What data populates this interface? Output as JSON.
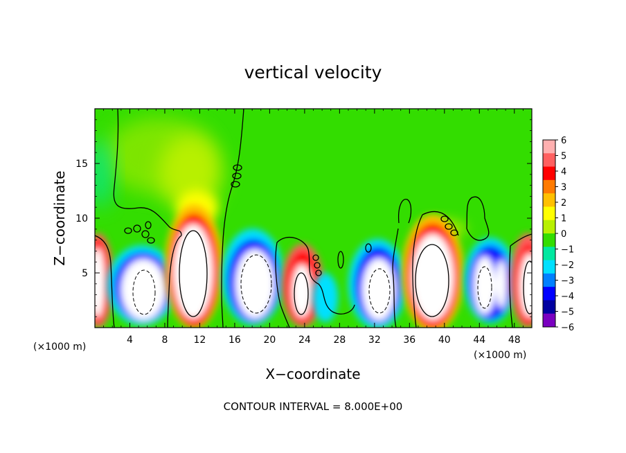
{
  "chart_data": {
    "type": "heatmap",
    "title": "vertical velocity",
    "xlabel": "X−coordinate",
    "ylabel": "Z−coordinate",
    "x_unit": "(×1000 m)",
    "y_unit": "(×1000 m)",
    "xlim": [
      0,
      50
    ],
    "ylim": [
      0,
      20
    ],
    "xticks": [
      4,
      8,
      12,
      16,
      20,
      24,
      28,
      32,
      36,
      40,
      44,
      48
    ],
    "xtick_labels": [
      "4",
      "8",
      "12",
      "16",
      "20",
      "24",
      "28",
      "32",
      "36",
      "40",
      "44",
      "48"
    ],
    "yticks": [
      5,
      10,
      15
    ],
    "ytick_labels": [
      "5",
      "10",
      "15"
    ],
    "footnote": "CONTOUR INTERVAL = 8.000E+00",
    "colorbar": {
      "ticks": [
        6,
        5,
        4,
        3,
        2,
        1,
        0,
        -1,
        -2,
        -3,
        -4,
        -5,
        -6
      ],
      "tick_labels": [
        "6",
        "5",
        "4",
        "3",
        "2",
        "1",
        "0",
        "−1",
        "−2",
        "−3",
        "−4",
        "−5",
        "−6"
      ],
      "colors": [
        "#ffb0b0",
        "#ff6060",
        "#ff0000",
        "#ff7a00",
        "#ffc000",
        "#ffff00",
        "#b8f000",
        "#33dd00",
        "#00e8a0",
        "#00e0ff",
        "#0080ff",
        "#0000ff",
        "#0000a0",
        "#7a00c0"
      ]
    },
    "background_value": 0,
    "cells": [
      {
        "x": 0.6,
        "z_top": 8.2,
        "sign": 1
      },
      {
        "x": 5.0,
        "z_top": 8.0,
        "sign": -1
      },
      {
        "x": 11.5,
        "z_top": 11.5,
        "sign": 1
      },
      {
        "x": 18.0,
        "z_top": 8.5,
        "sign": -1
      },
      {
        "x": 23.5,
        "z_top": 7.5,
        "sign": 1
      },
      {
        "x": 26.5,
        "z_top": 4.0,
        "sign": -1
      },
      {
        "x": 31.5,
        "z_top": 8.0,
        "sign": -1
      },
      {
        "x": 38.5,
        "z_top": 10.5,
        "sign": 1
      },
      {
        "x": 45.0,
        "z_top": 8.5,
        "sign": -1
      },
      {
        "x": 49.3,
        "z_top": 8.5,
        "sign": 1
      }
    ]
  }
}
